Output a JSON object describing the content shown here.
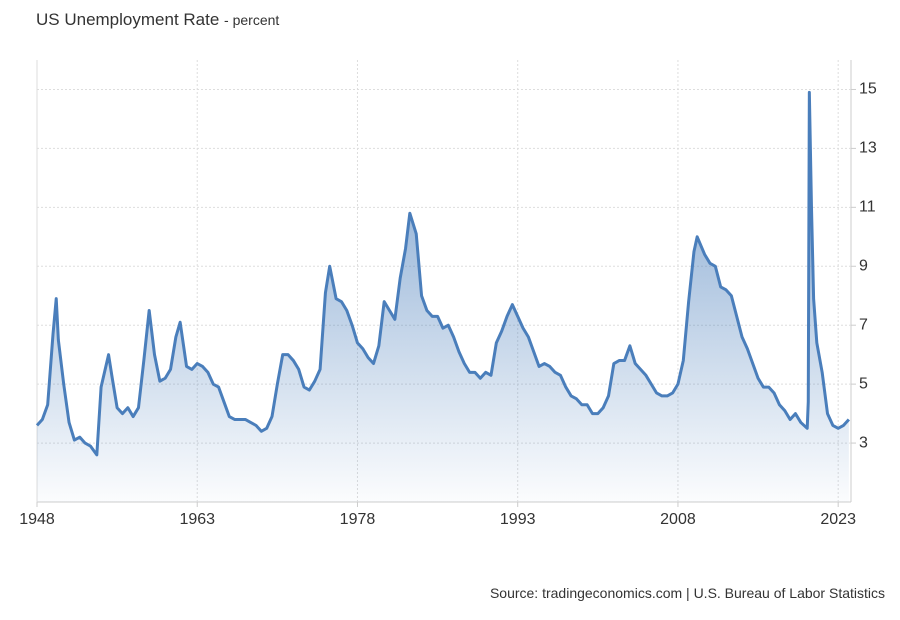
{
  "chart_data": {
    "type": "area",
    "title": "US Unemployment Rate",
    "subtitle": "- percent",
    "source": "Source: tradingeconomics.com | U.S. Bureau of Labor Statistics",
    "x": [
      1948.0,
      1948.5,
      1949.0,
      1949.5,
      1949.8,
      1950.0,
      1950.5,
      1951.0,
      1951.5,
      1952.0,
      1952.5,
      1953.0,
      1953.6,
      1954.0,
      1954.7,
      1955.0,
      1955.5,
      1956.0,
      1956.5,
      1957.0,
      1957.5,
      1958.0,
      1958.5,
      1959.0,
      1959.5,
      1960.0,
      1960.5,
      1961.0,
      1961.4,
      1962.0,
      1962.5,
      1963.0,
      1963.5,
      1964.0,
      1964.5,
      1965.0,
      1965.5,
      1966.0,
      1966.5,
      1967.0,
      1967.5,
      1968.0,
      1968.5,
      1969.0,
      1969.5,
      1970.0,
      1970.5,
      1971.0,
      1971.5,
      1972.0,
      1972.5,
      1973.0,
      1973.5,
      1974.0,
      1974.5,
      1975.0,
      1975.4,
      1976.0,
      1976.5,
      1977.0,
      1977.5,
      1978.0,
      1978.5,
      1979.0,
      1979.5,
      1980.0,
      1980.5,
      1981.0,
      1981.5,
      1982.0,
      1982.5,
      1982.9,
      1983.5,
      1984.0,
      1984.5,
      1985.0,
      1985.5,
      1986.0,
      1986.5,
      1987.0,
      1987.5,
      1988.0,
      1988.5,
      1989.0,
      1989.5,
      1990.0,
      1990.5,
      1991.0,
      1991.5,
      1992.0,
      1992.5,
      1993.0,
      1993.5,
      1994.0,
      1994.5,
      1995.0,
      1995.5,
      1996.0,
      1996.5,
      1997.0,
      1997.5,
      1998.0,
      1998.5,
      1999.0,
      1999.5,
      2000.0,
      2000.5,
      2001.0,
      2001.5,
      2002.0,
      2002.5,
      2003.0,
      2003.5,
      2004.0,
      2004.5,
      2005.0,
      2005.5,
      2006.0,
      2006.5,
      2007.0,
      2007.5,
      2008.0,
      2008.5,
      2009.0,
      2009.5,
      2009.8,
      2010.5,
      2011.0,
      2011.5,
      2012.0,
      2012.5,
      2013.0,
      2013.5,
      2014.0,
      2014.5,
      2015.0,
      2015.5,
      2016.0,
      2016.5,
      2017.0,
      2017.5,
      2018.0,
      2018.5,
      2019.0,
      2019.5,
      2020.1,
      2020.2,
      2020.3,
      2020.5,
      2020.7,
      2021.0,
      2021.5,
      2022.0,
      2022.5,
      2023.0,
      2023.5,
      2024.0
    ],
    "series": [
      {
        "name": "US Unemployment Rate",
        "color": "#4a7ebb",
        "values": [
          3.6,
          3.8,
          4.3,
          6.7,
          7.9,
          6.5,
          5.0,
          3.7,
          3.1,
          3.2,
          3.0,
          2.9,
          2.6,
          4.9,
          6.0,
          5.3,
          4.2,
          4.0,
          4.2,
          3.9,
          4.2,
          5.8,
          7.5,
          6.0,
          5.1,
          5.2,
          5.5,
          6.6,
          7.1,
          5.6,
          5.5,
          5.7,
          5.6,
          5.4,
          5.0,
          4.9,
          4.4,
          3.9,
          3.8,
          3.8,
          3.8,
          3.7,
          3.6,
          3.4,
          3.5,
          3.9,
          5.0,
          6.0,
          6.0,
          5.8,
          5.5,
          4.9,
          4.8,
          5.1,
          5.5,
          8.1,
          9.0,
          7.9,
          7.8,
          7.5,
          7.0,
          6.4,
          6.2,
          5.9,
          5.7,
          6.3,
          7.8,
          7.5,
          7.2,
          8.6,
          9.6,
          10.8,
          10.1,
          8.0,
          7.5,
          7.3,
          7.3,
          6.9,
          7.0,
          6.6,
          6.1,
          5.7,
          5.4,
          5.4,
          5.2,
          5.4,
          5.3,
          6.4,
          6.8,
          7.3,
          7.7,
          7.3,
          6.9,
          6.6,
          6.1,
          5.6,
          5.7,
          5.6,
          5.4,
          5.3,
          4.9,
          4.6,
          4.5,
          4.3,
          4.3,
          4.0,
          4.0,
          4.2,
          4.6,
          5.7,
          5.8,
          5.8,
          6.3,
          5.7,
          5.5,
          5.3,
          5.0,
          4.7,
          4.6,
          4.6,
          4.7,
          5.0,
          5.8,
          7.8,
          9.5,
          10.0,
          9.4,
          9.1,
          9.0,
          8.3,
          8.2,
          8.0,
          7.3,
          6.6,
          6.2,
          5.7,
          5.2,
          4.9,
          4.9,
          4.7,
          4.3,
          4.1,
          3.8,
          4.0,
          3.7,
          3.5,
          4.4,
          14.9,
          11.0,
          7.9,
          6.4,
          5.4,
          4.0,
          3.6,
          3.5,
          3.6,
          3.8
        ]
      }
    ],
    "xlim": [
      1948,
      2024.2
    ],
    "xticks": [
      1948,
      1963,
      1978,
      1993,
      2008,
      2023
    ],
    "ylim": [
      1,
      16
    ],
    "yticks": [
      3,
      5,
      7,
      9,
      11,
      13,
      15
    ],
    "grid": true
  }
}
